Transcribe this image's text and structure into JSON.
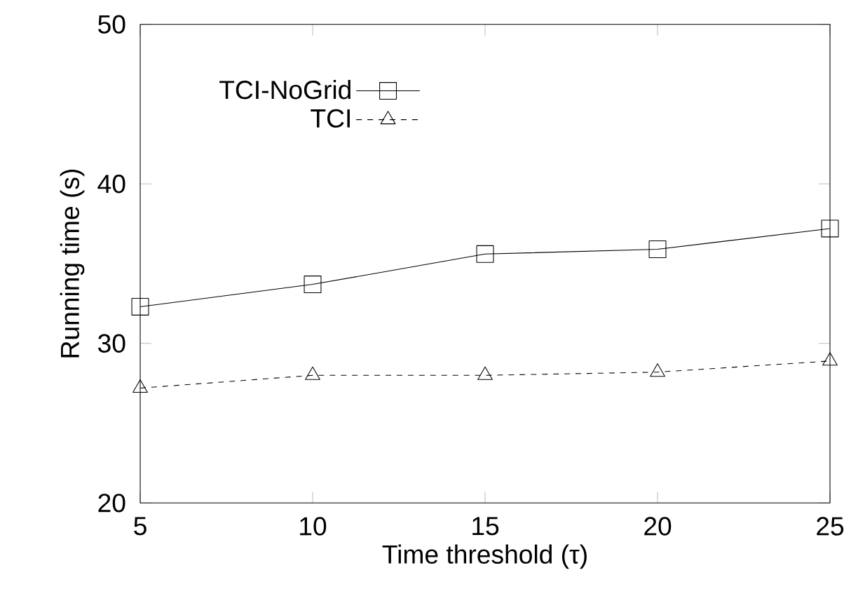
{
  "chart_data": {
    "type": "line",
    "xlabel": "Time threshold (τ)",
    "ylabel": "Running time (s)",
    "x": [
      5,
      10,
      15,
      20,
      25
    ],
    "series": [
      {
        "name": "TCI-NoGrid",
        "color": "#000000",
        "marker": "square",
        "line_style": "solid",
        "values": [
          32.3,
          33.7,
          35.6,
          35.9,
          37.2
        ]
      },
      {
        "name": "TCI",
        "color": "#000000",
        "marker": "triangle",
        "line_style": "dashed",
        "values": [
          27.2,
          28.0,
          28.0,
          28.2,
          28.9
        ]
      }
    ],
    "xlim": [
      5,
      25
    ],
    "xticks": [
      5,
      10,
      15,
      20,
      25
    ],
    "ylim": [
      20,
      50
    ],
    "yticks": [
      20,
      30,
      40,
      50
    ],
    "grid": false,
    "legend": "top left"
  }
}
